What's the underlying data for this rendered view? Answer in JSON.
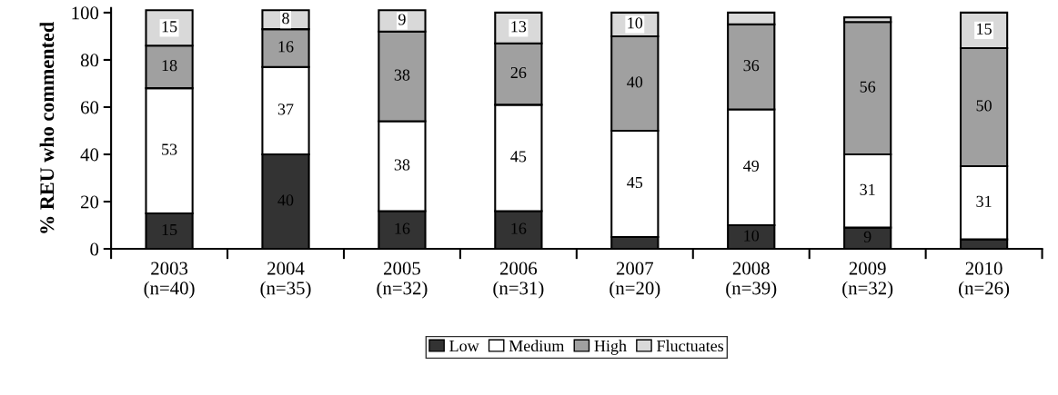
{
  "chart_data": {
    "type": "bar",
    "stacked": true,
    "ylabel": "% REU who commented",
    "categories": [
      "2003\n(n=40)",
      "2004\n(n=35)",
      "2005\n(n=32)",
      "2006\n(n=31)",
      "2007\n(n=20)",
      "2008\n(n=39)",
      "2009\n(n=32)",
      "2010\n(n=26)"
    ],
    "series": [
      {
        "name": "Low",
        "color": "#333333",
        "values": [
          15,
          40,
          16,
          16,
          5,
          10,
          9,
          4
        ],
        "value_labels": [
          "15",
          "40",
          "16",
          "16",
          null,
          "10",
          "9",
          null
        ]
      },
      {
        "name": "Medium",
        "color": "#ffffff",
        "values": [
          53,
          37,
          38,
          45,
          45,
          49,
          31,
          31
        ],
        "value_labels": [
          "53",
          "37",
          "38",
          "45",
          "45",
          "49",
          "31",
          "31"
        ]
      },
      {
        "name": "High",
        "color": "#a0a0a0",
        "values": [
          18,
          16,
          38,
          26,
          40,
          36,
          56,
          50
        ],
        "value_labels": [
          "18",
          "16",
          "38",
          "26",
          "40",
          "36",
          "56",
          "50"
        ]
      },
      {
        "name": "Fluctuates",
        "color": "#d9d9d9",
        "values": [
          15,
          8,
          9,
          13,
          10,
          5,
          2,
          15
        ],
        "value_labels": [
          "15",
          "8",
          "9",
          "13",
          "10",
          null,
          null,
          "15"
        ]
      }
    ],
    "ylim": [
      0,
      102
    ],
    "yticks": [
      0,
      20,
      40,
      60,
      80,
      100
    ],
    "grid": false,
    "legend": "bottom"
  }
}
